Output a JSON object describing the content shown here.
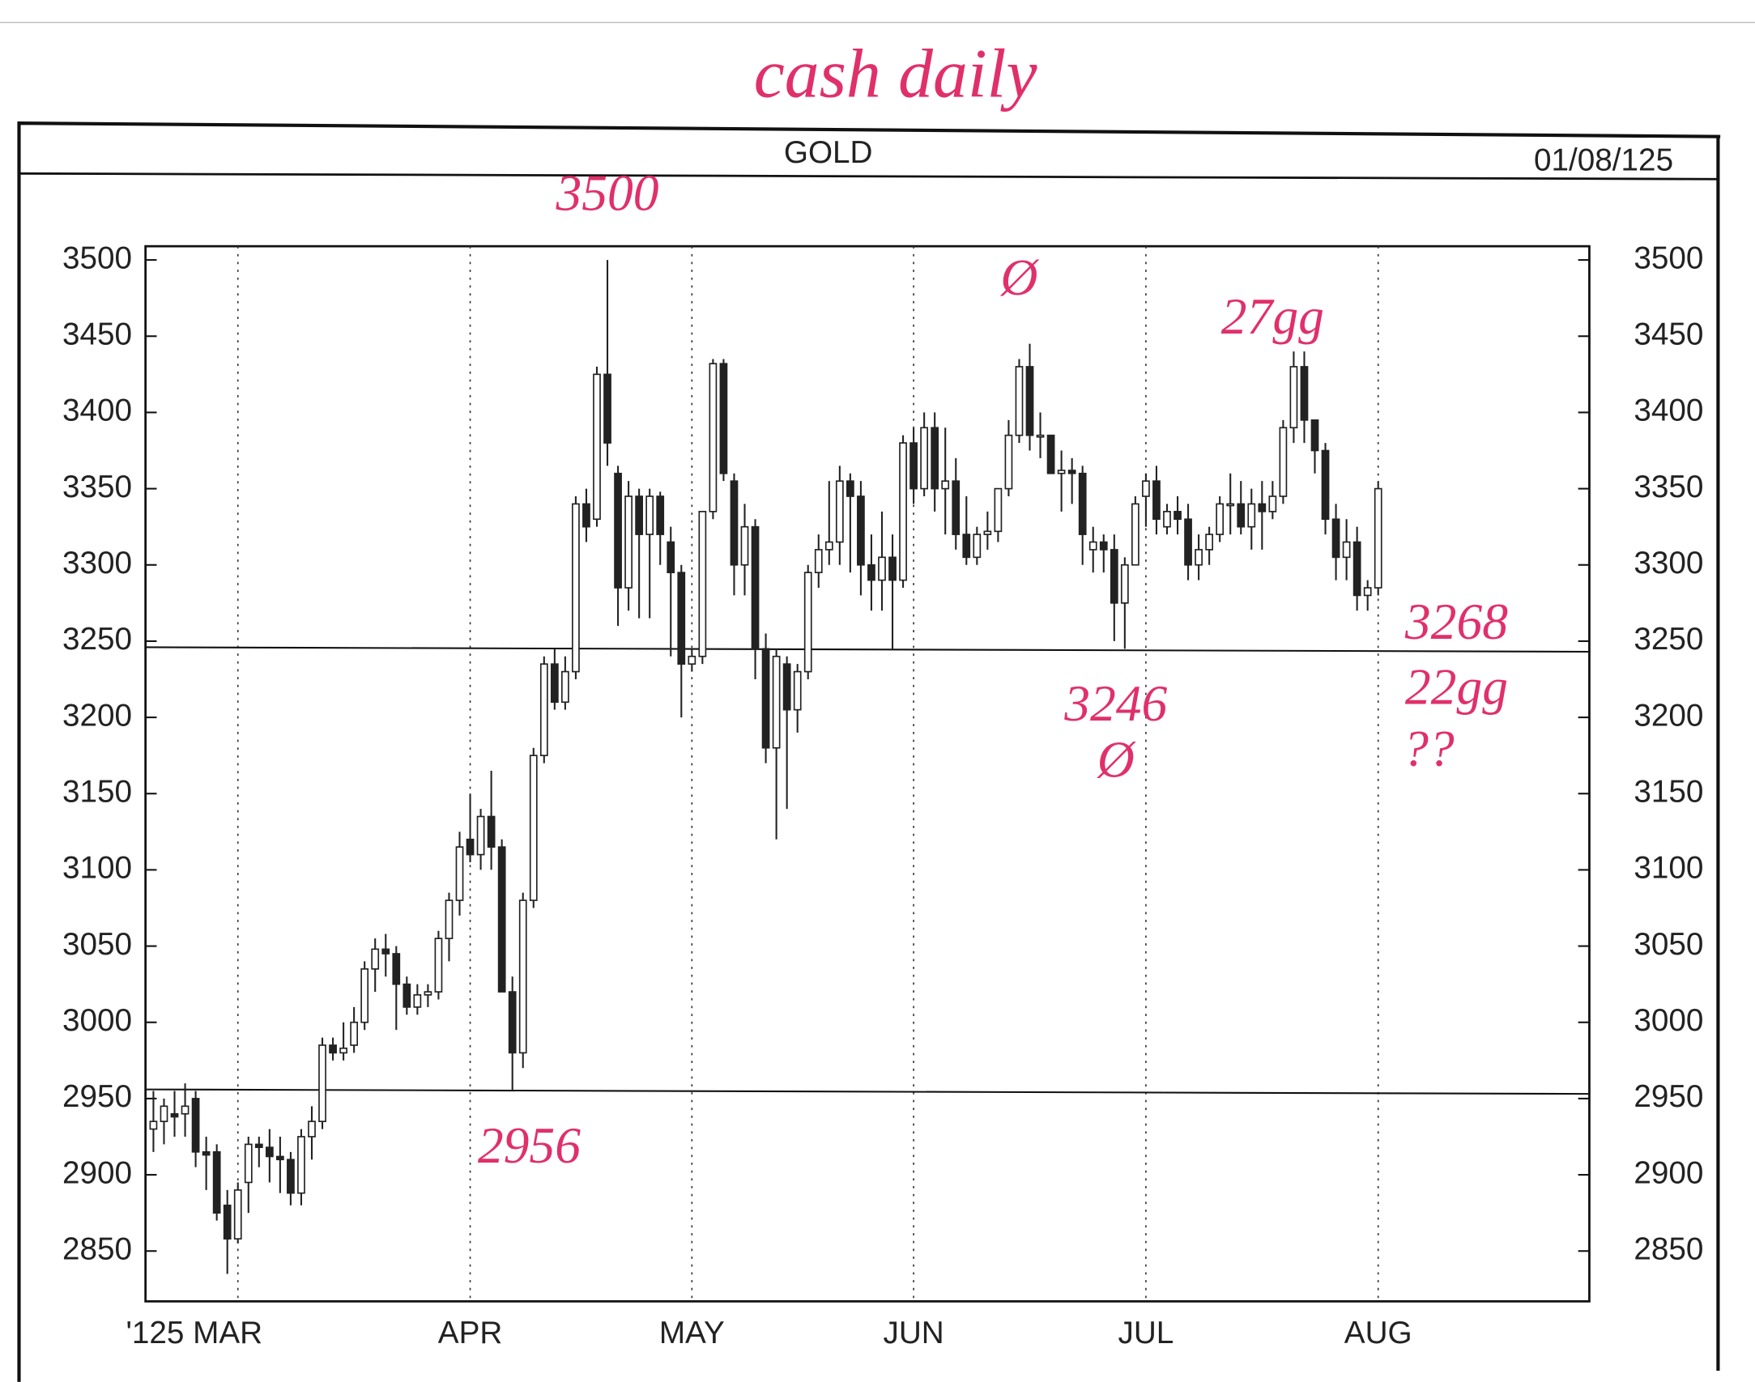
{
  "chart_data": {
    "type": "candlestick",
    "title": "GOLD",
    "date_label": "01/08/125",
    "handwritten_title": "cash daily",
    "ohlc": [
      [
        2930,
        2955,
        2915,
        2935
      ],
      [
        2935,
        2950,
        2920,
        2945
      ],
      [
        2940,
        2955,
        2925,
        2938
      ],
      [
        2940,
        2960,
        2925,
        2945
      ],
      [
        2950,
        2955,
        2905,
        2915
      ],
      [
        2915,
        2925,
        2890,
        2913
      ],
      [
        2915,
        2920,
        2870,
        2875
      ],
      [
        2880,
        2890,
        2835,
        2858
      ],
      [
        2858,
        2895,
        2855,
        2890
      ],
      [
        2895,
        2925,
        2875,
        2920
      ],
      [
        2920,
        2925,
        2905,
        2918
      ],
      [
        2918,
        2930,
        2895,
        2912
      ],
      [
        2912,
        2925,
        2888,
        2910
      ],
      [
        2910,
        2915,
        2880,
        2888
      ],
      [
        2888,
        2930,
        2880,
        2925
      ],
      [
        2925,
        2945,
        2910,
        2935
      ],
      [
        2935,
        2990,
        2930,
        2985
      ],
      [
        2985,
        2990,
        2975,
        2980
      ],
      [
        2980,
        3000,
        2975,
        2983
      ],
      [
        2985,
        3010,
        2980,
        3000
      ],
      [
        3000,
        3040,
        2995,
        3035
      ],
      [
        3035,
        3055,
        3020,
        3048
      ],
      [
        3048,
        3058,
        3030,
        3045
      ],
      [
        3045,
        3050,
        2995,
        3025
      ],
      [
        3025,
        3030,
        3005,
        3010
      ],
      [
        3010,
        3025,
        3005,
        3018
      ],
      [
        3018,
        3025,
        3010,
        3020
      ],
      [
        3020,
        3060,
        3015,
        3055
      ],
      [
        3055,
        3085,
        3040,
        3080
      ],
      [
        3080,
        3125,
        3070,
        3115
      ],
      [
        3120,
        3150,
        3105,
        3110
      ],
      [
        3110,
        3140,
        3100,
        3135
      ],
      [
        3135,
        3165,
        3100,
        3115
      ],
      [
        3115,
        3120,
        3020,
        3020
      ],
      [
        3020,
        3030,
        2955,
        2980
      ],
      [
        2980,
        3085,
        2970,
        3080
      ],
      [
        3080,
        3180,
        3075,
        3175
      ],
      [
        3175,
        3240,
        3170,
        3235
      ],
      [
        3235,
        3245,
        3205,
        3210
      ],
      [
        3210,
        3240,
        3205,
        3230
      ],
      [
        3230,
        3345,
        3225,
        3340
      ],
      [
        3340,
        3350,
        3315,
        3325
      ],
      [
        3330,
        3430,
        3325,
        3425
      ],
      [
        3425,
        3500,
        3365,
        3380
      ],
      [
        3360,
        3365,
        3260,
        3285
      ],
      [
        3285,
        3355,
        3270,
        3345
      ],
      [
        3345,
        3350,
        3265,
        3320
      ],
      [
        3320,
        3350,
        3265,
        3345
      ],
      [
        3345,
        3348,
        3300,
        3320
      ],
      [
        3315,
        3325,
        3240,
        3295
      ],
      [
        3295,
        3300,
        3200,
        3235
      ],
      [
        3235,
        3245,
        3230,
        3240
      ],
      [
        3240,
        3335,
        3235,
        3335
      ],
      [
        3335,
        3435,
        3330,
        3432
      ],
      [
        3432,
        3435,
        3355,
        3360
      ],
      [
        3355,
        3360,
        3280,
        3300
      ],
      [
        3300,
        3340,
        3280,
        3325
      ],
      [
        3325,
        3330,
        3225,
        3245
      ],
      [
        3245,
        3255,
        3170,
        3180
      ],
      [
        3180,
        3245,
        3120,
        3240
      ],
      [
        3235,
        3240,
        3140,
        3205
      ],
      [
        3205,
        3235,
        3190,
        3230
      ],
      [
        3230,
        3300,
        3225,
        3295
      ],
      [
        3295,
        3320,
        3285,
        3310
      ],
      [
        3310,
        3355,
        3300,
        3315
      ],
      [
        3315,
        3365,
        3300,
        3355
      ],
      [
        3355,
        3360,
        3295,
        3345
      ],
      [
        3345,
        3355,
        3280,
        3300
      ],
      [
        3300,
        3320,
        3270,
        3290
      ],
      [
        3290,
        3335,
        3270,
        3305
      ],
      [
        3305,
        3320,
        3245,
        3290
      ],
      [
        3290,
        3385,
        3285,
        3380
      ],
      [
        3380,
        3390,
        3340,
        3350
      ],
      [
        3350,
        3400,
        3345,
        3390
      ],
      [
        3390,
        3400,
        3335,
        3350
      ],
      [
        3350,
        3390,
        3320,
        3355
      ],
      [
        3355,
        3370,
        3310,
        3320
      ],
      [
        3320,
        3345,
        3300,
        3305
      ],
      [
        3305,
        3325,
        3300,
        3320
      ],
      [
        3320,
        3335,
        3310,
        3322
      ],
      [
        3322,
        3350,
        3315,
        3350
      ],
      [
        3350,
        3395,
        3345,
        3385
      ],
      [
        3385,
        3435,
        3380,
        3430
      ],
      [
        3430,
        3445,
        3375,
        3385
      ],
      [
        3385,
        3400,
        3370,
        3385
      ],
      [
        3385,
        3385,
        3360,
        3360
      ],
      [
        3360,
        3375,
        3335,
        3362
      ],
      [
        3362,
        3370,
        3340,
        3360
      ],
      [
        3360,
        3365,
        3300,
        3320
      ],
      [
        3310,
        3325,
        3295,
        3315
      ],
      [
        3315,
        3320,
        3295,
        3310
      ],
      [
        3310,
        3320,
        3250,
        3275
      ],
      [
        3275,
        3305,
        3245,
        3300
      ],
      [
        3300,
        3345,
        3300,
        3340
      ],
      [
        3345,
        3360,
        3325,
        3355
      ],
      [
        3355,
        3365,
        3320,
        3330
      ],
      [
        3325,
        3340,
        3320,
        3335
      ],
      [
        3335,
        3345,
        3320,
        3330
      ],
      [
        3330,
        3340,
        3290,
        3300
      ],
      [
        3300,
        3320,
        3290,
        3310
      ],
      [
        3310,
        3325,
        3300,
        3320
      ],
      [
        3320,
        3345,
        3315,
        3340
      ],
      [
        3340,
        3360,
        3320,
        3340
      ],
      [
        3340,
        3355,
        3320,
        3325
      ],
      [
        3325,
        3350,
        3310,
        3340
      ],
      [
        3340,
        3355,
        3310,
        3335
      ],
      [
        3335,
        3355,
        3330,
        3345
      ],
      [
        3345,
        3395,
        3340,
        3390
      ],
      [
        3390,
        3440,
        3380,
        3430
      ],
      [
        3430,
        3440,
        3380,
        3395
      ],
      [
        3395,
        3395,
        3360,
        3375
      ],
      [
        3375,
        3380,
        3320,
        3330
      ],
      [
        3330,
        3340,
        3290,
        3305
      ],
      [
        3305,
        3330,
        3290,
        3315
      ],
      [
        3315,
        3325,
        3270,
        3280
      ],
      [
        3280,
        3290,
        3270,
        3285
      ],
      [
        3285,
        3355,
        3280,
        3350
      ]
    ],
    "xlim": [
      -0.75,
      136
    ],
    "xticks": [
      {
        "value": 8,
        "label": "'125 MAR"
      },
      {
        "value": 30,
        "label": "APR"
      },
      {
        "value": 51,
        "label": "MAY"
      },
      {
        "value": 72,
        "label": "JUN"
      },
      {
        "value": 94,
        "label": "JUL"
      },
      {
        "value": 116,
        "label": "AUG"
      }
    ],
    "ylim": [
      2817,
      3509
    ],
    "yticks": [
      2850,
      2900,
      2950,
      3000,
      3050,
      3100,
      3150,
      3200,
      3250,
      3300,
      3350,
      3400,
      3450,
      3500
    ],
    "reference_lines": [
      3246,
      2956
    ],
    "annotations": [
      {
        "text": "3500",
        "x": 43,
        "y": 3500
      },
      {
        "text": "Ø",
        "x": 82,
        "y": 3445
      },
      {
        "text": "27gg",
        "x": 106,
        "y": 3430
      },
      {
        "text": "3268",
        "x": 116,
        "y": 3268
      },
      {
        "text": "3246",
        "x": 92,
        "y": 3246
      },
      {
        "text": "Ø",
        "x": 92,
        "y": 3246
      },
      {
        "text": "22gg",
        "x": 116,
        "y": 3246
      },
      {
        "text": "??",
        "x": 116,
        "y": 3246
      },
      {
        "text": "2956",
        "x": 34,
        "y": 2956
      }
    ],
    "up_color": "#ffffff",
    "down_color": "#222222",
    "annotation_color": "#e0306a"
  }
}
